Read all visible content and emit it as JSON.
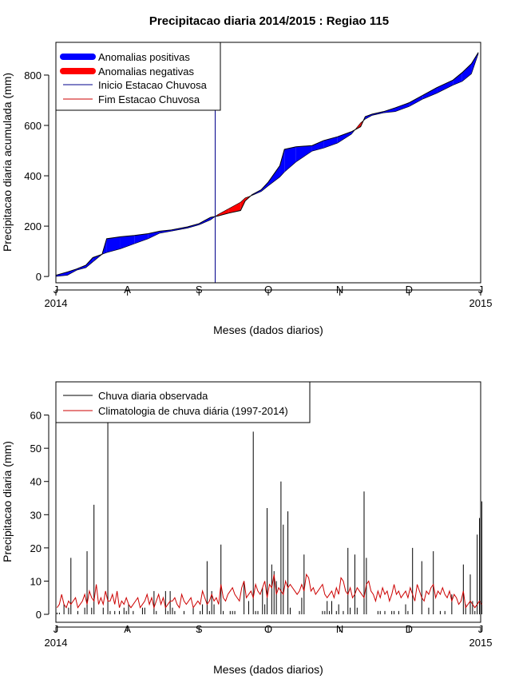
{
  "chart_data": [
    {
      "type": "area",
      "title": "Precipitacao diaria 2014/2015 : Regiao 115",
      "xlabel": "Meses (dados diarios)",
      "ylabel": "Precipitacao diaria acumulada (mm)",
      "xlim": [
        0,
        184
      ],
      "ylim": [
        -25,
        930
      ],
      "yticks": [
        0,
        200,
        400,
        600,
        800
      ],
      "xticks": [
        {
          "day": 0,
          "label": "J",
          "year": "2014"
        },
        {
          "day": 31,
          "label": "A",
          "year": ""
        },
        {
          "day": 62,
          "label": "S",
          "year": ""
        },
        {
          "day": 92,
          "label": "O",
          "year": ""
        },
        {
          "day": 123,
          "label": "N",
          "year": ""
        },
        {
          "day": 153,
          "label": "D",
          "year": ""
        },
        {
          "day": 184,
          "label": "J",
          "year": "2015"
        }
      ],
      "legend": {
        "position": "top-left",
        "items": [
          {
            "label": "Anomalias positivas",
            "color": "#0000ff",
            "style": "thick"
          },
          {
            "label": "Anomalias negativas",
            "color": "#ff0000",
            "style": "thick"
          },
          {
            "label": "Inicio Estacao Chuvosa",
            "color": "#00008b",
            "style": "line"
          },
          {
            "label": "Fim Estacao Chuvosa",
            "color": "#cc0000",
            "style": "line"
          }
        ]
      },
      "onset_day": 69,
      "series": [
        {
          "name": "Observado acumulado",
          "points": [
            [
              0,
              5
            ],
            [
              5,
              18
            ],
            [
              9,
              30
            ],
            [
              13,
              45
            ],
            [
              16,
              75
            ],
            [
              20,
              88
            ],
            [
              22,
              150
            ],
            [
              28,
              158
            ],
            [
              34,
              163
            ],
            [
              40,
              170
            ],
            [
              45,
              180
            ],
            [
              50,
              185
            ],
            [
              57,
              197
            ],
            [
              62,
              210
            ],
            [
              67,
              235
            ],
            [
              70,
              240
            ],
            [
              75,
              252
            ],
            [
              80,
              262
            ],
            [
              82,
              300
            ],
            [
              85,
              325
            ],
            [
              89,
              345
            ],
            [
              92,
              375
            ],
            [
              97,
              440
            ],
            [
              99,
              505
            ],
            [
              104,
              515
            ],
            [
              111,
              520
            ],
            [
              116,
              540
            ],
            [
              122,
              555
            ],
            [
              128,
              575
            ],
            [
              132,
              595
            ],
            [
              134,
              635
            ],
            [
              137,
              645
            ],
            [
              142,
              655
            ],
            [
              147,
              670
            ],
            [
              153,
              690
            ],
            [
              159,
              720
            ],
            [
              165,
              750
            ],
            [
              172,
              780
            ],
            [
              176,
              810
            ],
            [
              180,
              845
            ],
            [
              183,
              890
            ]
          ]
        },
        {
          "name": "Climatologia acumulada",
          "points": [
            [
              0,
              0
            ],
            [
              5,
              5
            ],
            [
              9,
              25
            ],
            [
              13,
              35
            ],
            [
              16,
              58
            ],
            [
              20,
              88
            ],
            [
              22,
              95
            ],
            [
              28,
              110
            ],
            [
              34,
              130
            ],
            [
              40,
              150
            ],
            [
              45,
              172
            ],
            [
              50,
              180
            ],
            [
              57,
              192
            ],
            [
              62,
              205
            ],
            [
              67,
              225
            ],
            [
              70,
              245
            ],
            [
              75,
              270
            ],
            [
              80,
              295
            ],
            [
              82,
              312
            ],
            [
              85,
              322
            ],
            [
              89,
              338
            ],
            [
              92,
              360
            ],
            [
              97,
              395
            ],
            [
              99,
              415
            ],
            [
              104,
              455
            ],
            [
              111,
              498
            ],
            [
              116,
              510
            ],
            [
              122,
              530
            ],
            [
              128,
              565
            ],
            [
              132,
              610
            ],
            [
              134,
              625
            ],
            [
              137,
              640
            ],
            [
              142,
              650
            ],
            [
              147,
              655
            ],
            [
              153,
              675
            ],
            [
              159,
              705
            ],
            [
              165,
              728
            ],
            [
              172,
              760
            ],
            [
              176,
              775
            ],
            [
              180,
              805
            ],
            [
              183,
              885
            ]
          ]
        }
      ]
    },
    {
      "type": "bar",
      "title": "",
      "xlabel": "Meses (dados diarios)",
      "ylabel": "Precipitacao diaria (mm)",
      "xlim": [
        0,
        184
      ],
      "ylim": [
        -2.4,
        70
      ],
      "yticks": [
        0,
        10,
        20,
        30,
        40,
        50,
        60
      ],
      "xticks": [
        {
          "day": 0,
          "label": "J",
          "year": "2014"
        },
        {
          "day": 31,
          "label": "A",
          "year": ""
        },
        {
          "day": 62,
          "label": "S",
          "year": ""
        },
        {
          "day": 92,
          "label": "O",
          "year": ""
        },
        {
          "day": 123,
          "label": "N",
          "year": ""
        },
        {
          "day": 153,
          "label": "D",
          "year": ""
        },
        {
          "day": 184,
          "label": "J",
          "year": "2015"
        }
      ],
      "legend": {
        "position": "top-left",
        "items": [
          {
            "label": "Chuva diaria observada",
            "color": "#000000"
          },
          {
            "label": "Climatologia de chuva diária (1997-2014)",
            "color": "#cc0000"
          }
        ]
      },
      "observed": {
        "name": "Chuva diaria observada",
        "values": [
          0.5,
          0.5,
          0,
          3,
          0,
          2,
          17,
          0,
          0,
          1,
          0,
          0,
          2,
          19,
          0,
          2,
          33,
          0,
          0,
          0,
          2,
          0,
          70,
          1,
          0,
          1,
          0,
          1,
          0,
          2,
          1,
          3,
          0,
          1,
          0,
          0,
          0,
          2,
          2,
          0,
          0,
          0,
          7,
          1,
          0,
          0,
          0,
          7,
          1,
          7,
          2,
          1,
          0,
          0,
          0,
          1,
          0,
          0,
          0,
          2,
          0,
          0,
          1,
          3,
          0,
          16,
          1,
          7,
          3,
          0,
          0,
          21,
          1,
          0,
          0,
          1,
          1,
          1,
          0,
          0,
          0,
          10,
          0,
          4,
          0,
          55,
          1,
          1,
          0,
          8,
          3,
          32,
          0,
          15,
          13,
          10,
          0,
          40,
          27,
          0,
          31,
          2,
          0,
          0,
          0,
          1,
          5,
          18,
          0,
          0,
          0,
          0,
          0,
          0,
          0,
          1,
          1,
          4,
          1,
          4,
          0,
          1,
          3,
          0,
          1,
          0,
          20,
          2,
          0,
          18,
          2,
          0,
          0,
          37,
          17,
          0,
          0,
          0,
          0,
          1,
          1,
          0,
          1,
          0,
          0,
          1,
          1,
          0,
          1,
          0,
          0,
          3,
          1,
          0,
          20,
          0,
          0,
          0,
          16,
          0,
          0,
          2,
          0,
          19,
          0,
          0,
          1,
          0,
          1,
          0,
          0,
          6,
          0,
          0,
          0,
          0,
          15,
          3,
          0,
          12,
          4,
          1,
          24,
          29,
          34
        ]
      },
      "climatology": {
        "name": "Climatologia de chuva diária (1997-2014)",
        "values": [
          2,
          3,
          6,
          3,
          2,
          4,
          3,
          4,
          5,
          2,
          3,
          4,
          6,
          3,
          7,
          5,
          4,
          9,
          3,
          5,
          3,
          7,
          4,
          4,
          6,
          3,
          7,
          2,
          4,
          3,
          5,
          3,
          2,
          3,
          4,
          5,
          2,
          3,
          4,
          6,
          3,
          5,
          2,
          4,
          6,
          3,
          5,
          2,
          3,
          4,
          4,
          5,
          3,
          2,
          6,
          4,
          3,
          4,
          5,
          2,
          3,
          4,
          3,
          7,
          5,
          3,
          4,
          6,
          4,
          5,
          3,
          9,
          5,
          4,
          6,
          7,
          8,
          6,
          5,
          4,
          8,
          10,
          5,
          6,
          7,
          5,
          9,
          7,
          6,
          8,
          10,
          5,
          9,
          8,
          12,
          6,
          8,
          7,
          6,
          10,
          8,
          9,
          8,
          7,
          6,
          7,
          9,
          7,
          12,
          11,
          7,
          8,
          6,
          7,
          8,
          9,
          6,
          5,
          6,
          7,
          5,
          8,
          6,
          11,
          10,
          7,
          6,
          8,
          5,
          6,
          8,
          7,
          6,
          5,
          9,
          10,
          7,
          6,
          4,
          7,
          5,
          8,
          6,
          7,
          4,
          6,
          9,
          6,
          7,
          5,
          6,
          7,
          5,
          8,
          6,
          4,
          9,
          7,
          5,
          4,
          7,
          6,
          8,
          9,
          5,
          7,
          6,
          8,
          6,
          5,
          7,
          4,
          6,
          5,
          3,
          4,
          7,
          2,
          3,
          4,
          3,
          2,
          3,
          4,
          3
        ]
      }
    }
  ]
}
